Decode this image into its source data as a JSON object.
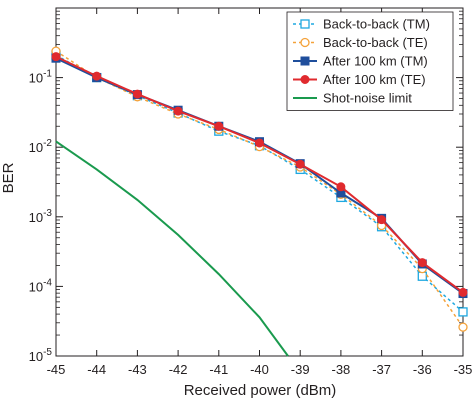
{
  "chart_data": {
    "type": "line",
    "title": "",
    "xlabel": "Received power (dBm)",
    "ylabel": "BER",
    "xlim": [
      -45,
      -35
    ],
    "ylim": [
      1e-05,
      1
    ],
    "yscale": "log",
    "grid": false,
    "legend_position": "top-right",
    "x_ticks": [
      "-45",
      "-44",
      "-43",
      "-42",
      "-41",
      "-40",
      "-39",
      "-38",
      "-37",
      "-36",
      "-35"
    ],
    "y_ticks": [
      {
        "base": "10",
        "exp": "-1",
        "value": 0.1
      },
      {
        "base": "10",
        "exp": "-2",
        "value": 0.01
      },
      {
        "base": "10",
        "exp": "-3",
        "value": 0.001
      },
      {
        "base": "10",
        "exp": "-4",
        "value": 0.0001
      },
      {
        "base": "10",
        "exp": "-5",
        "value": 1e-05
      }
    ],
    "series": [
      {
        "name": "Back-to-back (TM)",
        "color": "#1ea8e0",
        "line": "dotted",
        "marker": "square-open",
        "x": [
          -45,
          -44,
          -43,
          -42,
          -41,
          -40,
          -39,
          -38,
          -37,
          -36,
          -35
        ],
        "y": [
          0.21,
          0.1,
          0.055,
          0.031,
          0.017,
          0.0105,
          0.0048,
          0.0019,
          0.00072,
          0.00014,
          4.3e-05
        ]
      },
      {
        "name": "Back-to-back (TE)",
        "color": "#f4a23a",
        "line": "dotted",
        "marker": "circle-open",
        "x": [
          -45,
          -44,
          -43,
          -42,
          -41,
          -40,
          -39,
          -38,
          -37,
          -36,
          -35
        ],
        "y": [
          0.24,
          0.1,
          0.053,
          0.03,
          0.018,
          0.0102,
          0.0052,
          0.0021,
          0.00075,
          0.00018,
          2.6e-05
        ]
      },
      {
        "name": "After 100 km (TM)",
        "color": "#1f4e9c",
        "line": "solid",
        "marker": "square-filled",
        "x": [
          -45,
          -44,
          -43,
          -42,
          -41,
          -40,
          -39,
          -38,
          -37,
          -36,
          -35
        ],
        "y": [
          0.19,
          0.1,
          0.057,
          0.034,
          0.02,
          0.012,
          0.0058,
          0.0022,
          0.00095,
          0.00021,
          7.9e-05
        ]
      },
      {
        "name": "After 100 km (TE)",
        "color": "#e02a2e",
        "line": "solid",
        "marker": "circle-filled",
        "x": [
          -45,
          -44,
          -43,
          -42,
          -41,
          -40,
          -39,
          -38,
          -37,
          -36,
          -35
        ],
        "y": [
          0.2,
          0.105,
          0.058,
          0.033,
          0.02,
          0.0115,
          0.0057,
          0.0027,
          0.00091,
          0.00022,
          8.2e-05
        ]
      },
      {
        "name": "Shot-noise limit",
        "color": "#1a9a4e",
        "line": "solid",
        "marker": "none",
        "x": [
          -45,
          -44,
          -43,
          -42,
          -41,
          -40,
          -39.3
        ],
        "y": [
          0.0121,
          0.0048,
          0.00175,
          0.00055,
          0.00015,
          3.6e-05,
          1e-05
        ]
      }
    ]
  }
}
